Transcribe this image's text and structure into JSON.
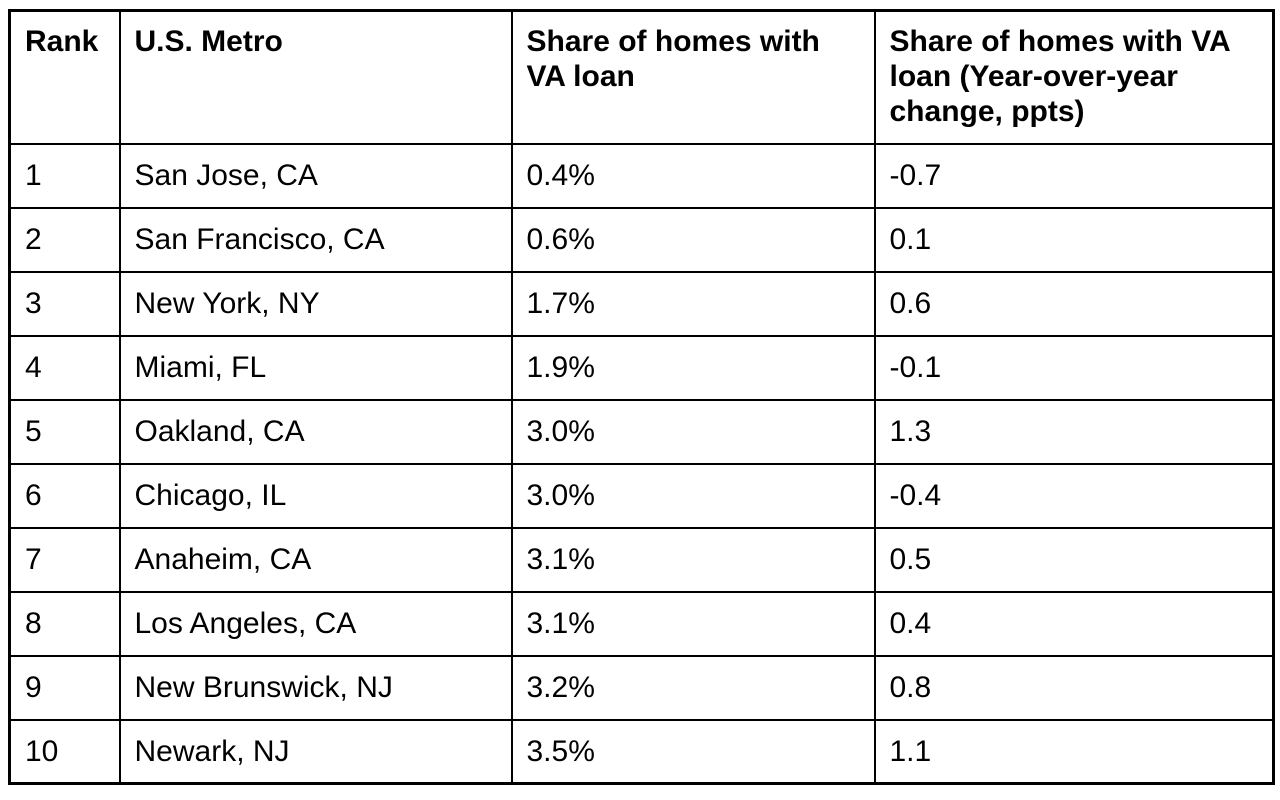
{
  "chart_data": {
    "type": "table",
    "columns": [
      "Rank",
      "U.S. Metro",
      "Share of homes with VA loan",
      "Share of homes with VA loan (Year-over-year change, ppts)"
    ],
    "rows": [
      [
        "1",
        "San Jose, CA",
        "0.4%",
        "-0.7"
      ],
      [
        "2",
        "San Francisco, CA",
        "0.6%",
        "0.1"
      ],
      [
        "3",
        "New York, NY",
        "1.7%",
        "0.6"
      ],
      [
        "4",
        "Miami, FL",
        "1.9%",
        "-0.1"
      ],
      [
        "5",
        "Oakland, CA",
        "3.0%",
        "1.3"
      ],
      [
        "6",
        "Chicago, IL",
        "3.0%",
        "-0.4"
      ],
      [
        "7",
        "Anaheim, CA",
        "3.1%",
        "0.5"
      ],
      [
        "8",
        "Los Angeles, CA",
        "3.1%",
        "0.4"
      ],
      [
        "9",
        "New Brunswick, NJ",
        "3.2%",
        "0.8"
      ],
      [
        "10",
        "Newark, NJ",
        "3.5%",
        "1.1"
      ]
    ],
    "layout": {
      "grid": "all-borders",
      "header_bold": true,
      "border_color": "#000000",
      "text_color": "#000000",
      "background_color": "#ffffff"
    }
  }
}
